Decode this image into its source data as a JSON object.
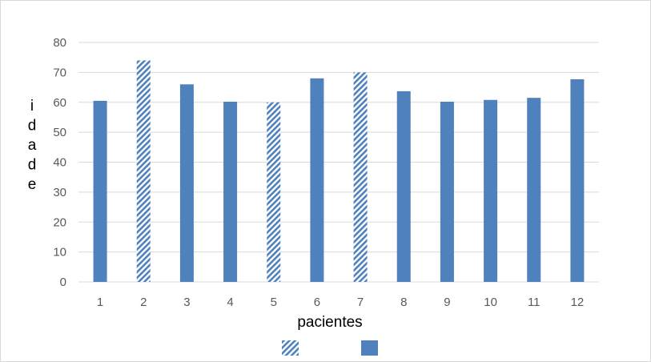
{
  "chart_data": {
    "type": "bar",
    "title": "",
    "xlabel": "pacientes",
    "ylabel": "idade",
    "categories": [
      "1",
      "2",
      "3",
      "4",
      "5",
      "6",
      "7",
      "8",
      "9",
      "10",
      "11",
      "12"
    ],
    "values": [
      60.5,
      74,
      66,
      60.2,
      60,
      68,
      70,
      63.7,
      60.2,
      60.8,
      61.5,
      67.7
    ],
    "highlighted": [
      false,
      true,
      false,
      false,
      true,
      false,
      true,
      false,
      false,
      false,
      false,
      false
    ],
    "ylim": [
      0,
      80
    ],
    "yticks": [
      0,
      10,
      20,
      30,
      40,
      50,
      60,
      70,
      80
    ],
    "grid": true,
    "legend_position": "bottom",
    "legend": [
      {
        "name": "",
        "pattern": "hatched"
      },
      {
        "name": "",
        "pattern": "solid"
      }
    ],
    "colors": {
      "bar": "#4f81bd",
      "grid": "#d9d9d9",
      "tick_text": "#595959"
    }
  }
}
